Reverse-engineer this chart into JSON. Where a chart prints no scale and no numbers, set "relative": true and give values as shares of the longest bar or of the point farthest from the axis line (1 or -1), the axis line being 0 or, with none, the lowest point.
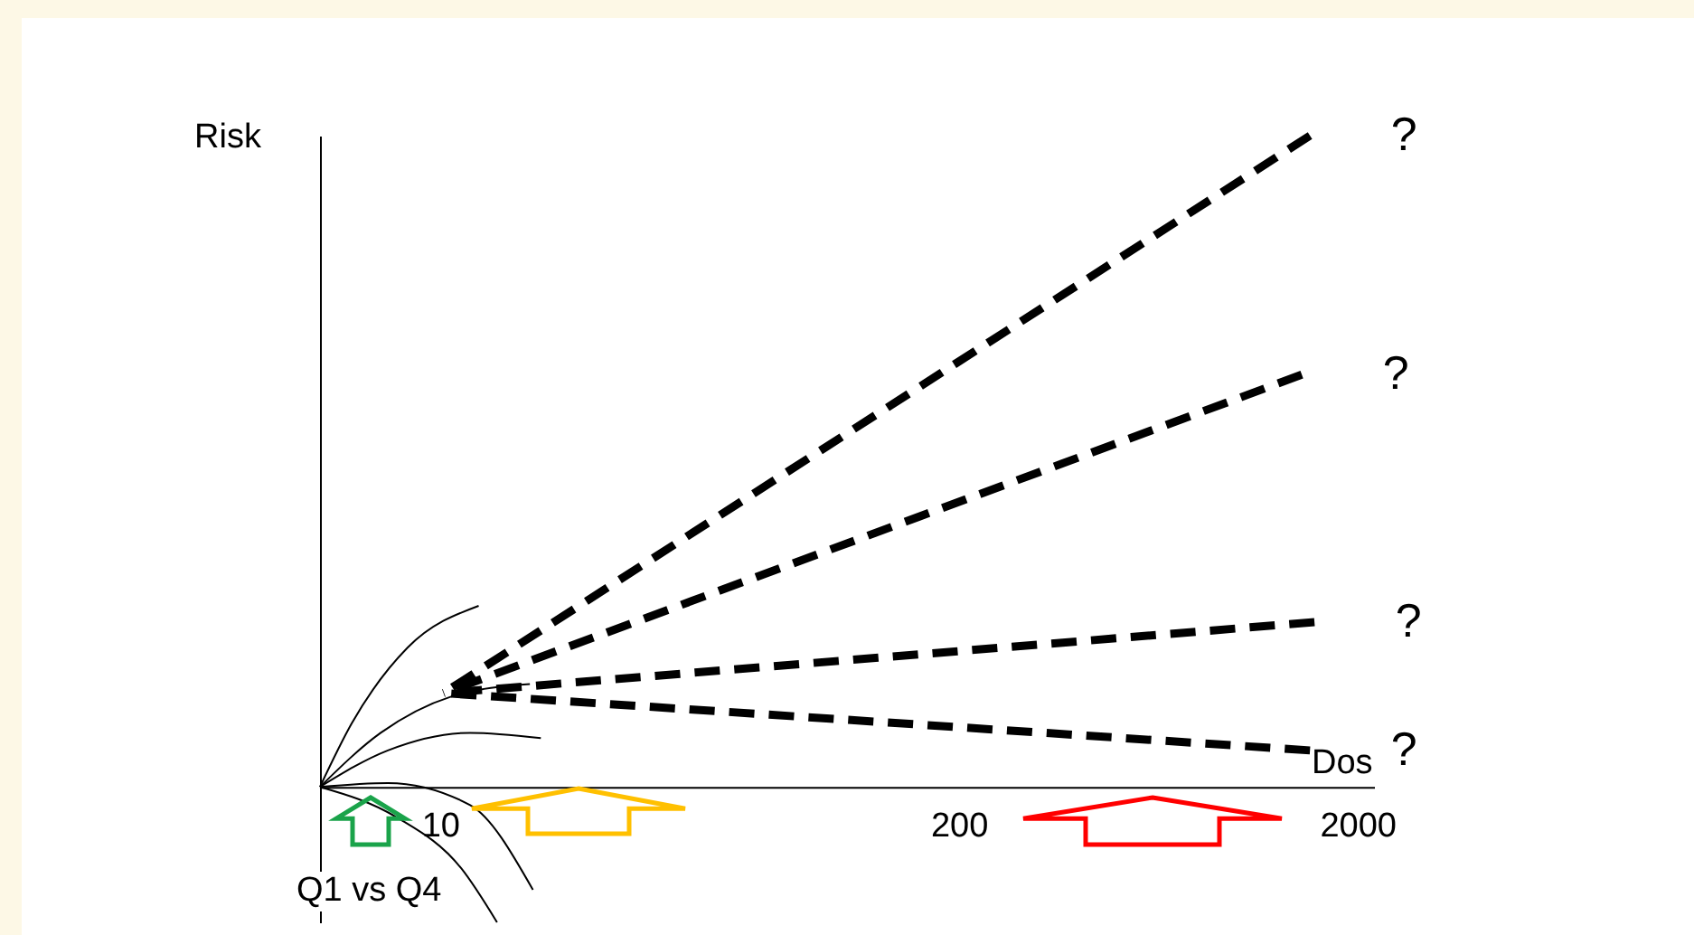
{
  "chart_data": {
    "type": "line",
    "relative": true,
    "ylabel": "Risk",
    "xlabel": "Dos",
    "log": "x",
    "xlim": [
      5,
      2200
    ],
    "xticks": [
      10,
      200,
      2000
    ],
    "tick_labels": "x",
    "grid": false,
    "legend": false,
    "marker": "none",
    "series": [
      {
        "color": "#000000",
        "line_style": "dashed",
        "x": [
          10.2,
          1520
        ],
        "values": [
          0.144,
          1
        ]
      },
      {
        "color": "#000000",
        "line_style": "dashed",
        "x": [
          10.2,
          1450
        ],
        "values": [
          0.144,
          0.633
        ]
      },
      {
        "color": "#000000",
        "line_style": "dashed",
        "x": [
          10.2,
          1560
        ],
        "values": [
          0.144,
          0.253
        ]
      },
      {
        "color": "#000000",
        "line_style": "dashed",
        "x": [
          10.2,
          1520
        ],
        "values": [
          0.144,
          0.056
        ]
      },
      {
        "color": "#000000",
        "line_style": "solid",
        "x": [
          5,
          6,
          8.3,
          12.5
        ],
        "values": [
          0,
          0.097,
          0.214,
          0.278
        ]
      },
      {
        "color": "#000000",
        "line_style": "solid",
        "x": [
          5,
          7.1,
          10.7,
          16.8
        ],
        "values": [
          0,
          0.083,
          0.139,
          0.158
        ]
      },
      {
        "color": "#000000",
        "line_style": "solid",
        "x": [
          5,
          7.4,
          11.9,
          17.9
        ],
        "values": [
          0,
          0.056,
          0.083,
          0.075
        ]
      },
      {
        "color": "#000000",
        "line_style": "solid",
        "x": [
          5,
          7.4,
          11.9,
          17.1
        ],
        "values": [
          0,
          0.006,
          -0.028,
          -0.158
        ]
      },
      {
        "color": "#000000",
        "line_style": "solid",
        "x": [
          5,
          7.8,
          11.3,
          13.9
        ],
        "values": [
          0,
          -0.047,
          -0.125,
          -0.208
        ]
      }
    ],
    "annotations": [
      {
        "text": "?",
        "x": 1520,
        "y": 1
      },
      {
        "text": "?",
        "x": 1450,
        "y": 0.633
      },
      {
        "text": "?",
        "x": 1560,
        "y": 0.253
      },
      {
        "text": "?",
        "x": 1520,
        "y": 0.056
      },
      "Q1 vs Q4"
    ]
  }
}
